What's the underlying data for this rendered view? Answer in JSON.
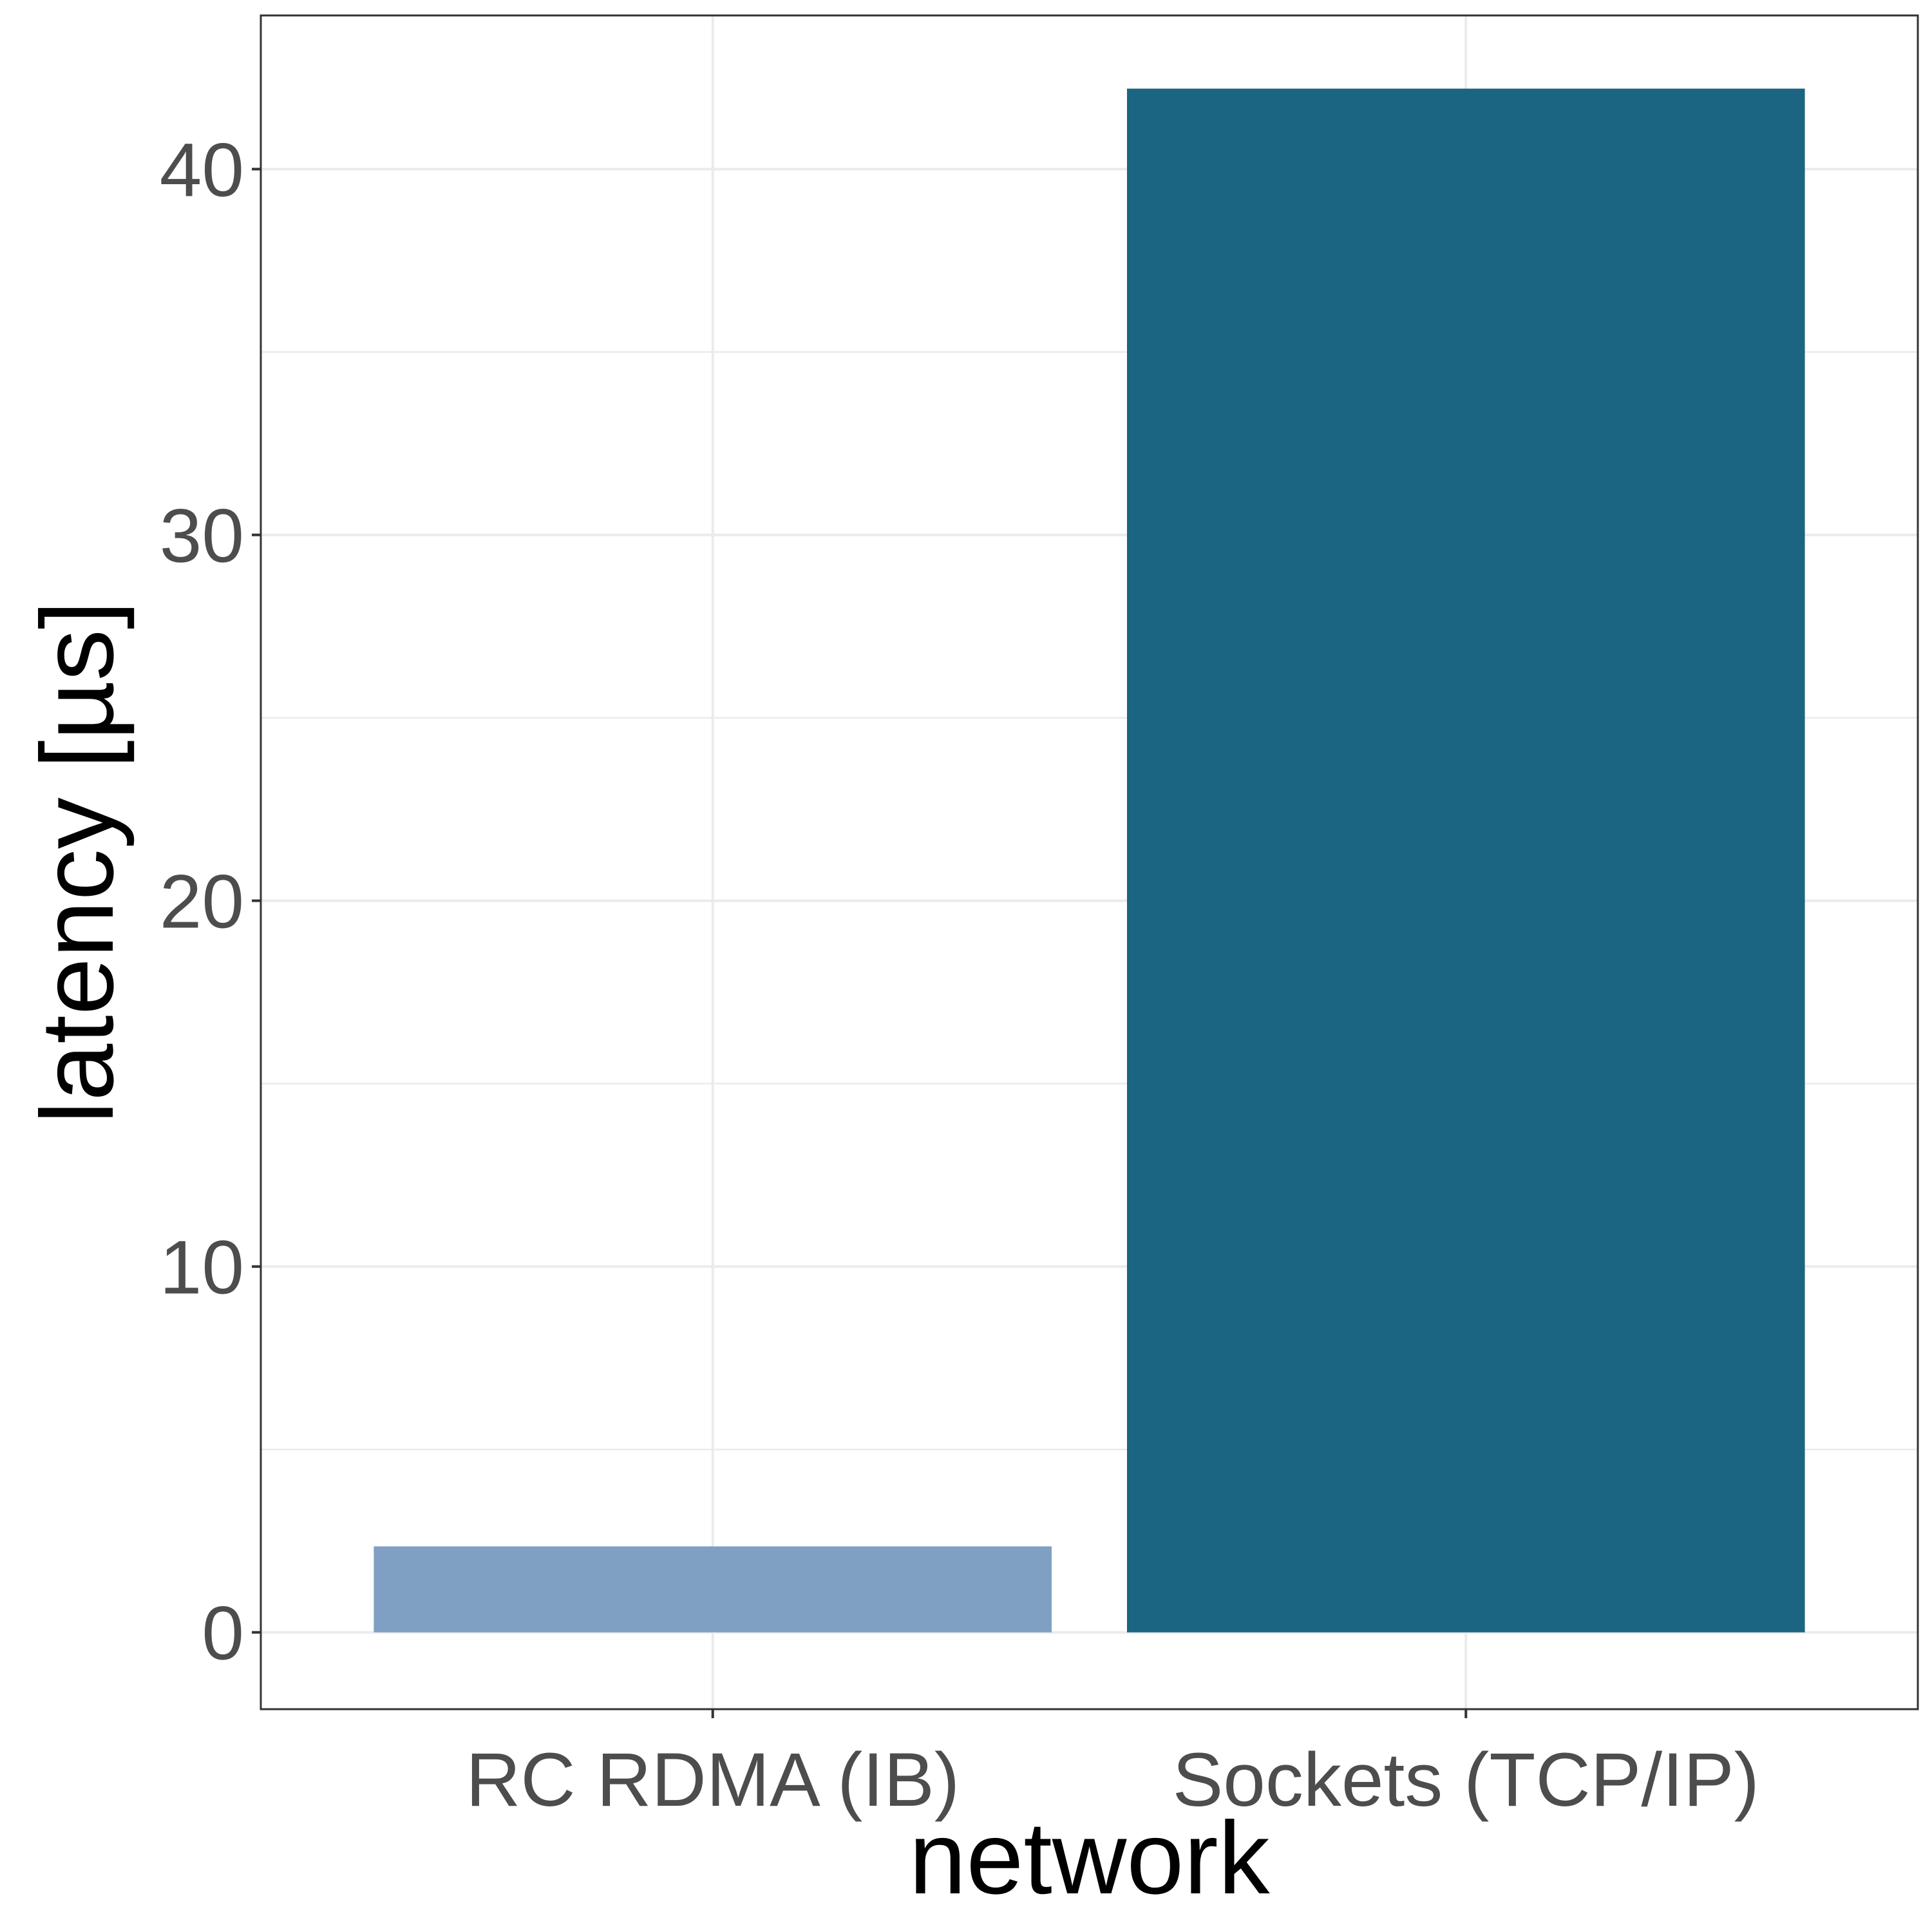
{
  "chart_data": {
    "type": "bar",
    "xlabel": "network",
    "ylabel": "latency [µs]",
    "categories": [
      "RC RDMA (IB)",
      "Sockets (TCP/IP)"
    ],
    "values": [
      2.35,
      42.2
    ],
    "bar_colors": [
      "#7fa0c2",
      "#1b6482"
    ],
    "ylim": [
      -2.1,
      44.2
    ],
    "yticks": [
      0,
      10,
      20,
      30,
      40
    ],
    "yticks_minor": [
      5,
      15,
      25,
      35
    ],
    "grid": true,
    "legend": "none"
  }
}
